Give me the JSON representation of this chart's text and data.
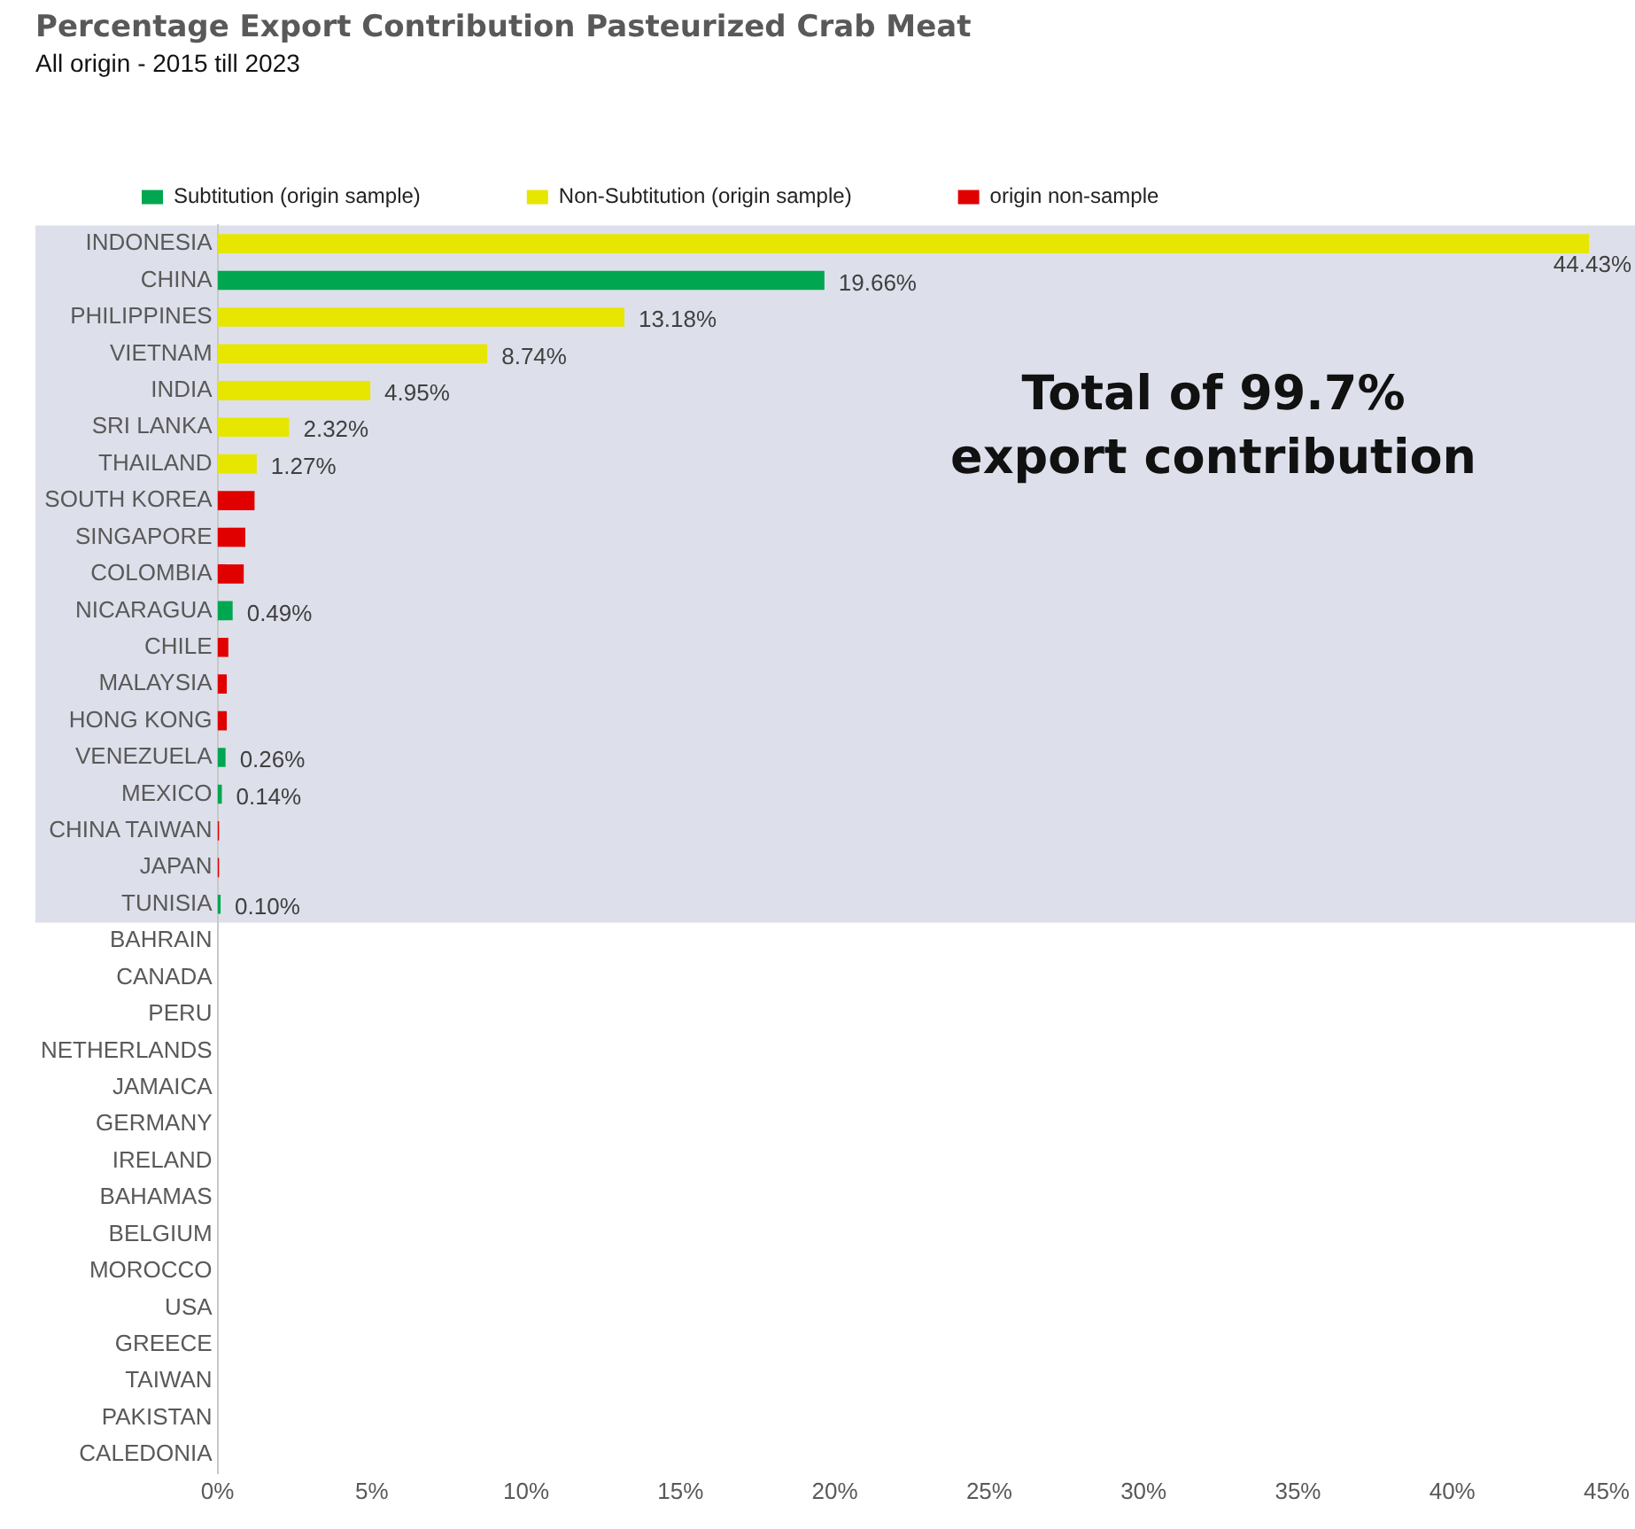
{
  "chart_data": {
    "type": "bar",
    "orientation": "horizontal",
    "title": "Percentage Export Contribution Pasteurized Crab Meat",
    "subtitle": "All origin - 2015 till 2023",
    "categories": [
      "INDONESIA",
      "CHINA",
      "PHILIPPINES",
      "VIETNAM",
      "INDIA",
      "SRI LANKA",
      "THAILAND",
      "SOUTH KOREA",
      "SINGAPORE",
      "COLOMBIA",
      "NICARAGUA",
      "CHILE",
      "MALAYSIA",
      "HONG KONG",
      "VENEZUELA",
      "MEXICO",
      "CHINA TAIWAN",
      "JAPAN",
      "TUNISIA",
      "BAHRAIN",
      "CANADA",
      "PERU",
      "NETHERLANDS",
      "JAMAICA",
      "GERMANY",
      "IRELAND",
      "BAHAMAS",
      "BELGIUM",
      "MOROCCO",
      "USA",
      "GREECE",
      "TAIWAN",
      "PAKISTAN",
      "CALEDONIA"
    ],
    "series": [
      {
        "name": "Subtitution (origin sample)",
        "color": "#00a650",
        "values": [
          null,
          19.66,
          null,
          null,
          null,
          null,
          null,
          null,
          null,
          null,
          0.49,
          null,
          null,
          null,
          0.26,
          0.14,
          null,
          null,
          0.1,
          null,
          null,
          null,
          null,
          null,
          null,
          null,
          null,
          null,
          null,
          null,
          null,
          null,
          null,
          null
        ],
        "value_labels": [
          null,
          "19.66%",
          null,
          null,
          null,
          null,
          null,
          null,
          null,
          null,
          "0.49%",
          null,
          null,
          null,
          "0.26%",
          "0.14%",
          null,
          null,
          "0.10%",
          null,
          null,
          null,
          null,
          null,
          null,
          null,
          null,
          null,
          null,
          null,
          null,
          null,
          null,
          null
        ]
      },
      {
        "name": "Non-Subtitution (origin sample)",
        "color": "#e6e600",
        "values": [
          44.43,
          null,
          13.18,
          8.74,
          4.95,
          2.32,
          1.27,
          null,
          null,
          null,
          null,
          null,
          null,
          null,
          null,
          null,
          null,
          null,
          null,
          null,
          null,
          null,
          null,
          null,
          null,
          null,
          null,
          null,
          null,
          null,
          null,
          null,
          null,
          null
        ],
        "value_labels": [
          "44.43%",
          null,
          "13.18%",
          "8.74%",
          "4.95%",
          "2.32%",
          "1.27%",
          null,
          null,
          null,
          null,
          null,
          null,
          null,
          null,
          null,
          null,
          null,
          null,
          null,
          null,
          null,
          null,
          null,
          null,
          null,
          null,
          null,
          null,
          null,
          null,
          null,
          null,
          null
        ]
      },
      {
        "name": "origin non-sample",
        "color": "#e00000",
        "values": [
          null,
          null,
          null,
          null,
          null,
          null,
          null,
          1.2,
          0.9,
          0.85,
          null,
          0.35,
          0.3,
          0.3,
          null,
          null,
          0.05,
          0.05,
          null,
          null,
          null,
          null,
          null,
          null,
          null,
          null,
          null,
          null,
          null,
          null,
          null,
          null,
          null,
          null
        ]
      }
    ],
    "xlim": [
      0,
      45
    ],
    "xticks": [
      {
        "value": 0,
        "label": "0%"
      },
      {
        "value": 5,
        "label": "5%"
      },
      {
        "value": 10,
        "label": "10%"
      },
      {
        "value": 15,
        "label": "15%"
      },
      {
        "value": 20,
        "label": "20%"
      },
      {
        "value": 25,
        "label": "25%"
      },
      {
        "value": 30,
        "label": "30%"
      },
      {
        "value": 35,
        "label": "35%"
      },
      {
        "value": 40,
        "label": "40%"
      },
      {
        "value": 45,
        "label": "45%"
      }
    ],
    "bands": [
      {
        "axis": "y",
        "from": "INDONESIA",
        "to": "TUNISIA",
        "color": "#dde0ea"
      }
    ],
    "annotations": [
      "Total of 99.7%\nexport contribution"
    ],
    "grid": false,
    "legend": "top left"
  }
}
